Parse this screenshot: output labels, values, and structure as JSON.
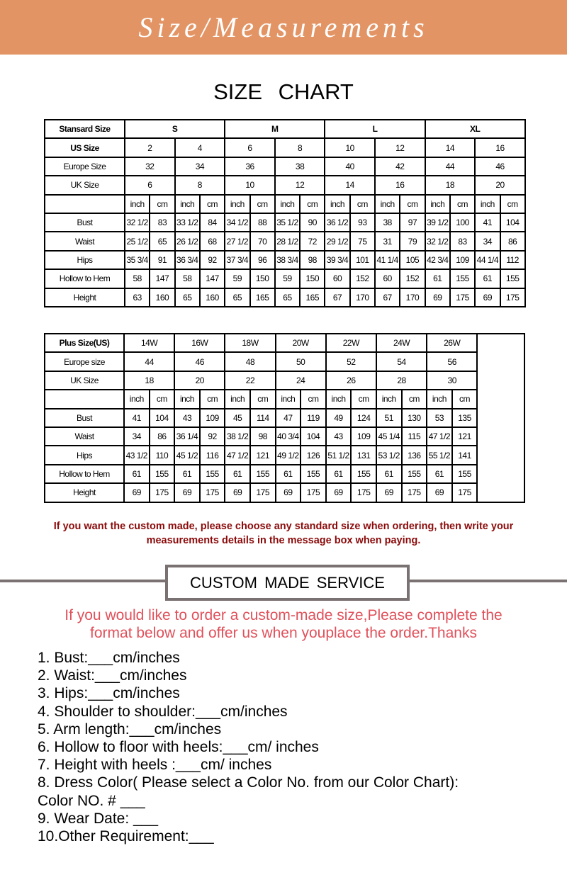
{
  "banner": {
    "title": "Size/Measurements",
    "color": "#e39464"
  },
  "chart_title": "SIZE   CHART",
  "standard_table": {
    "header_label": "Stansard Size",
    "groups": [
      "S",
      "M",
      "L",
      "XL"
    ],
    "us_label": "US Size",
    "us": [
      "2",
      "4",
      "6",
      "8",
      "10",
      "12",
      "14",
      "16"
    ],
    "europe_label": "Europe Size",
    "europe": [
      "32",
      "34",
      "36",
      "38",
      "40",
      "42",
      "44",
      "46"
    ],
    "uk_label": "UK Size",
    "uk": [
      "6",
      "8",
      "10",
      "12",
      "14",
      "16",
      "18",
      "20"
    ],
    "unit_inch": "inch",
    "unit_cm": "cm",
    "rows": [
      {
        "label": "Bust",
        "values": [
          "32 1/2",
          "83",
          "33 1/2",
          "84",
          "34 1/2",
          "88",
          "35 1/2",
          "90",
          "36 1/2",
          "93",
          "38",
          "97",
          "39 1/2",
          "100",
          "41",
          "104"
        ]
      },
      {
        "label": "Waist",
        "values": [
          "25 1/2",
          "65",
          "26 1/2",
          "68",
          "27 1/2",
          "70",
          "28 1/2",
          "72",
          "29 1/2",
          "75",
          "31",
          "79",
          "32 1/2",
          "83",
          "34",
          "86"
        ]
      },
      {
        "label": "Hips",
        "values": [
          "35 3/4",
          "91",
          "36 3/4",
          "92",
          "37 3/4",
          "96",
          "38 3/4",
          "98",
          "39 3/4",
          "101",
          "41 1/4",
          "105",
          "42 3/4",
          "109",
          "44 1/4",
          "112"
        ]
      },
      {
        "label": "Hollow to Hem",
        "values": [
          "58",
          "147",
          "58",
          "147",
          "59",
          "150",
          "59",
          "150",
          "60",
          "152",
          "60",
          "152",
          "61",
          "155",
          "61",
          "155"
        ]
      },
      {
        "label": "Height",
        "values": [
          "63",
          "160",
          "65",
          "160",
          "65",
          "165",
          "65",
          "165",
          "67",
          "170",
          "67",
          "170",
          "69",
          "175",
          "69",
          "175"
        ]
      }
    ]
  },
  "plus_table": {
    "header_label": "Plus Size(US)",
    "sizes": [
      "14W",
      "16W",
      "18W",
      "20W",
      "22W",
      "24W",
      "26W"
    ],
    "europe_label": "Europe size",
    "europe": [
      "44",
      "46",
      "48",
      "50",
      "52",
      "54",
      "56"
    ],
    "uk_label": "UK Size",
    "uk": [
      "18",
      "20",
      "22",
      "24",
      "26",
      "28",
      "30"
    ],
    "unit_inch": "inch",
    "unit_cm": "cm",
    "rows": [
      {
        "label": "Bust",
        "values": [
          "41",
          "104",
          "43",
          "109",
          "45",
          "114",
          "47",
          "119",
          "49",
          "124",
          "51",
          "130",
          "53",
          "135"
        ]
      },
      {
        "label": "Waist",
        "values": [
          "34",
          "86",
          "36 1/4",
          "92",
          "38 1/2",
          "98",
          "40 3/4",
          "104",
          "43",
          "109",
          "45 1/4",
          "115",
          "47 1/2",
          "121"
        ]
      },
      {
        "label": "Hips",
        "values": [
          "43 1/2",
          "110",
          "45 1/2",
          "116",
          "47 1/2",
          "121",
          "49 1/2",
          "126",
          "51 1/2",
          "131",
          "53 1/2",
          "136",
          "55 1/2",
          "141"
        ]
      },
      {
        "label": "Hollow to Hem",
        "values": [
          "61",
          "155",
          "61",
          "155",
          "61",
          "155",
          "61",
          "155",
          "61",
          "155",
          "61",
          "155",
          "61",
          "155"
        ]
      },
      {
        "label": "Height",
        "values": [
          "69",
          "175",
          "69",
          "175",
          "69",
          "175",
          "69",
          "175",
          "69",
          "175",
          "69",
          "175",
          "69",
          "175"
        ]
      }
    ]
  },
  "note": {
    "line1": "If you want the custom made, please choose any standard size when ordering, then write your",
    "line2": "measurements details in the message box when paying.",
    "color": "#8b0a0a"
  },
  "custom": {
    "heading": "CUSTOM  MADE SERVICE",
    "intro_line1": "If you would like to order a custom-made size,Please complete the",
    "intro_line2": "format below and offer us when youplace the order.Thanks",
    "intro_color": "#e0505a",
    "items": [
      "1. Bust:___cm/inches",
      "2. Waist:___cm/inches",
      "3. Hips:___cm/inches",
      "4. Shoulder to shoulder:___cm/inches",
      "5. Arm length:___cm/inches",
      "6. Hollow to floor with heels:___cm/ inches",
      "7. Height with heels :___cm/ inches",
      "8. Dress Color( Please select a Color No. from our Color Chart):",
      "Color NO. # ___",
      "9. Wear Date: ___",
      "10.Other Requirement:___"
    ]
  }
}
